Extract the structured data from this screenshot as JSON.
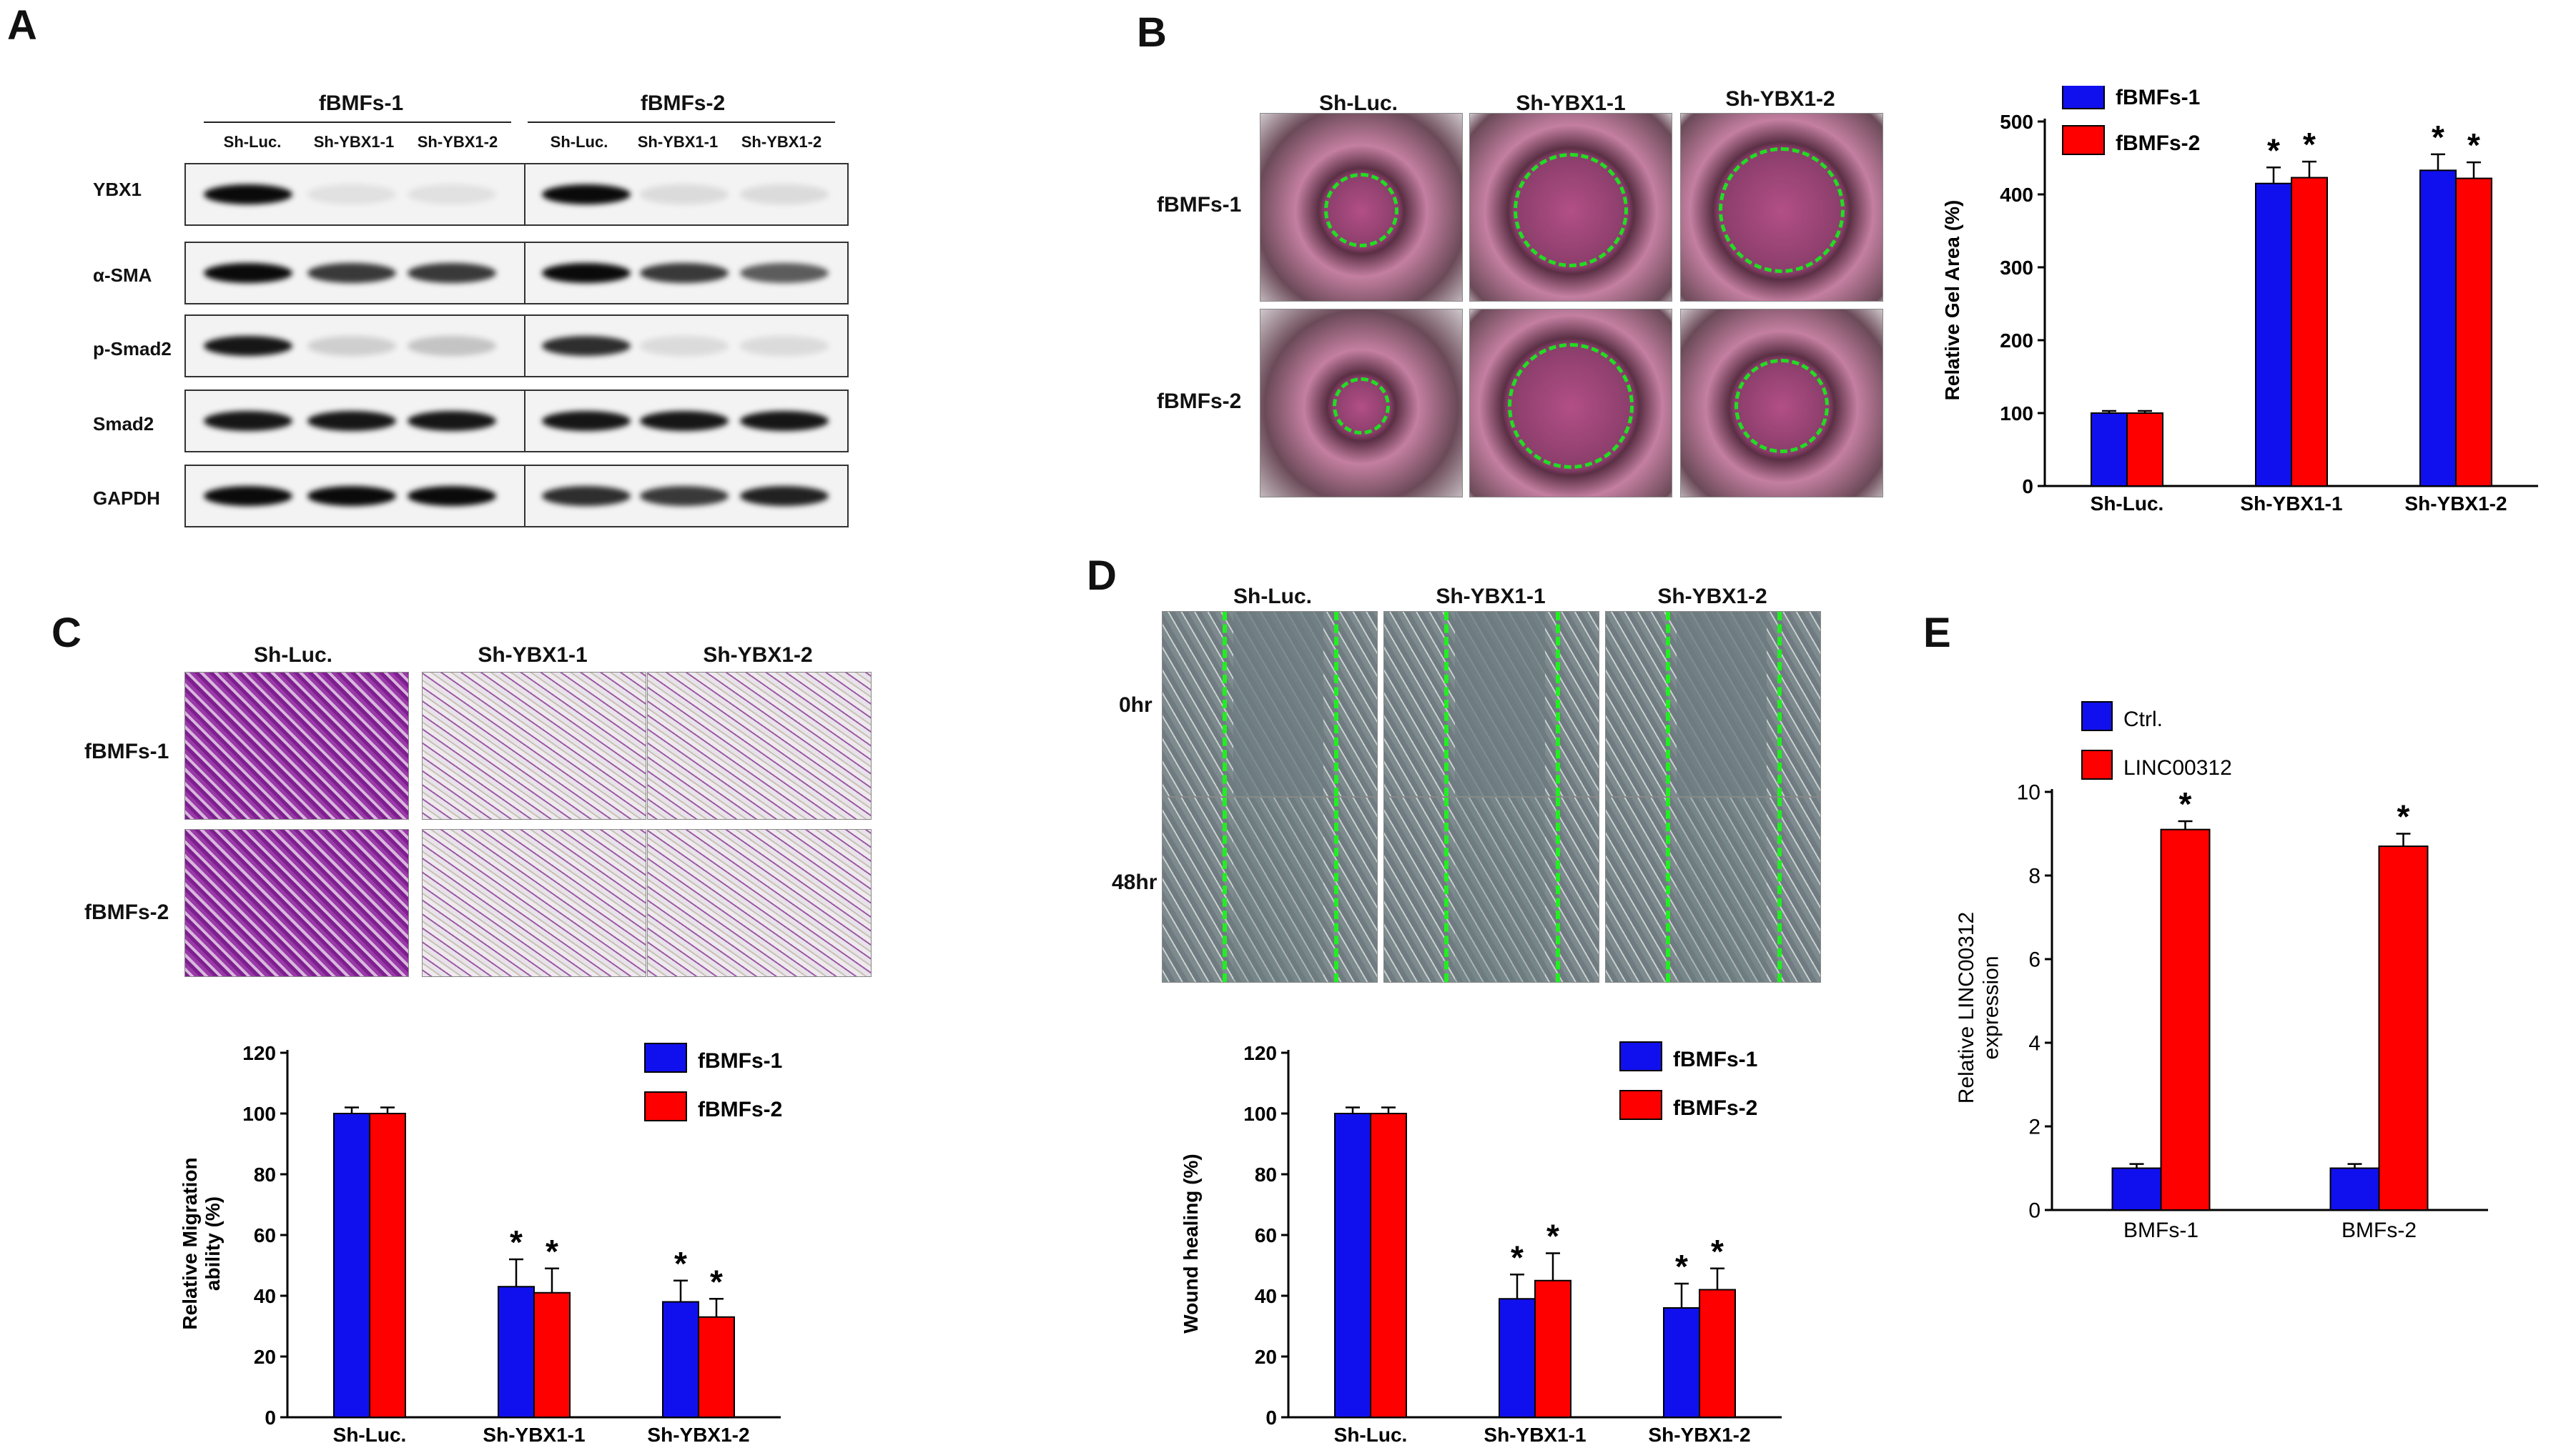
{
  "panels": {
    "a": {
      "label": "A",
      "groups": [
        "fBMFs-1",
        "fBMFs-2"
      ],
      "lanes": [
        "Sh-Luc.",
        "Sh-YBX1-1",
        "Sh-YBX1-2"
      ],
      "rows": [
        "YBX1",
        "α-SMA",
        "p-Smad2",
        "Smad2",
        "GAPDH"
      ]
    },
    "b": {
      "label": "B",
      "columns": [
        "Sh-Luc.",
        "Sh-YBX1-1",
        "Sh-YBX1-2"
      ],
      "rows": [
        "fBMFs-1",
        "fBMFs-2"
      ]
    },
    "c": {
      "label": "C",
      "columns": [
        "Sh-Luc.",
        "Sh-YBX1-1",
        "Sh-YBX1-2"
      ],
      "rows": [
        "fBMFs-1",
        "fBMFs-2"
      ]
    },
    "d": {
      "label": "D",
      "columns": [
        "Sh-Luc.",
        "Sh-YBX1-1",
        "Sh-YBX1-2"
      ],
      "rows": [
        "0hr",
        "48hr"
      ]
    },
    "e": {
      "label": "E"
    }
  },
  "colors": {
    "blue": "#1010ee",
    "red": "#ff0000"
  },
  "chart_data": [
    {
      "id": "chartB",
      "type": "bar",
      "categories": [
        "Sh-Luc.",
        "Sh-YBX1-1",
        "Sh-YBX1-2"
      ],
      "series": [
        {
          "name": "fBMFs-1",
          "values": [
            100,
            415,
            433
          ],
          "errors": [
            3,
            22,
            22
          ]
        },
        {
          "name": "fBMFs-2",
          "values": [
            100,
            423,
            422
          ],
          "errors": [
            3,
            22,
            22
          ]
        }
      ],
      "significance": [
        [
          "",
          "",
          ""
        ],
        [
          "*",
          "*",
          "*"
        ]
      ],
      "significance_by_series": [
        [
          "",
          "*",
          "*"
        ],
        [
          "",
          "*",
          "*"
        ]
      ],
      "ylabel": "Relative Gel Area (%)",
      "xlabel": "",
      "ylim": [
        0,
        500
      ],
      "yticks": [
        0,
        100,
        200,
        300,
        400,
        500
      ]
    },
    {
      "id": "chartC",
      "type": "bar",
      "categories": [
        "Sh-Luc.",
        "Sh-YBX1-1",
        "Sh-YBX1-2"
      ],
      "series": [
        {
          "name": "fBMFs-1",
          "values": [
            100,
            43,
            38
          ],
          "errors": [
            2,
            9,
            7
          ]
        },
        {
          "name": "fBMFs-2",
          "values": [
            100,
            41,
            33
          ],
          "errors": [
            2,
            8,
            6
          ]
        }
      ],
      "significance_by_series": [
        [
          "",
          "*",
          "*"
        ],
        [
          "",
          "*",
          "*"
        ]
      ],
      "ylabel": "Relative Migration ability (%)",
      "xlabel": "",
      "ylim": [
        0,
        120
      ],
      "yticks": [
        0,
        20,
        40,
        60,
        80,
        100,
        120
      ]
    },
    {
      "id": "chartD",
      "type": "bar",
      "categories": [
        "Sh-Luc.",
        "Sh-YBX1-1",
        "Sh-YBX1-2"
      ],
      "series": [
        {
          "name": "fBMFs-1",
          "values": [
            100,
            39,
            36
          ],
          "errors": [
            2,
            8,
            8
          ]
        },
        {
          "name": "fBMFs-2",
          "values": [
            100,
            45,
            42
          ],
          "errors": [
            2,
            9,
            7
          ]
        }
      ],
      "significance_by_series": [
        [
          "",
          "*",
          "*"
        ],
        [
          "",
          "*",
          "*"
        ]
      ],
      "ylabel": "Wound healing (%)",
      "xlabel": "",
      "ylim": [
        0,
        120
      ],
      "yticks": [
        0,
        20,
        40,
        60,
        80,
        100,
        120
      ]
    },
    {
      "id": "chartE",
      "type": "bar",
      "categories": [
        "BMFs-1",
        "BMFs-2"
      ],
      "series": [
        {
          "name": "Ctrl.",
          "values": [
            1.0,
            1.0
          ],
          "errors": [
            0.1,
            0.1
          ]
        },
        {
          "name": "LINC00312",
          "values": [
            9.1,
            8.7
          ],
          "errors": [
            0.2,
            0.3
          ]
        }
      ],
      "significance_by_series": [
        [
          "",
          ""
        ],
        [
          "*",
          "*"
        ]
      ],
      "ylabel": "Relative LINC00312 expression",
      "xlabel": "",
      "ylim": [
        0,
        10
      ],
      "yticks": [
        0,
        2,
        4,
        6,
        8,
        10
      ]
    }
  ]
}
